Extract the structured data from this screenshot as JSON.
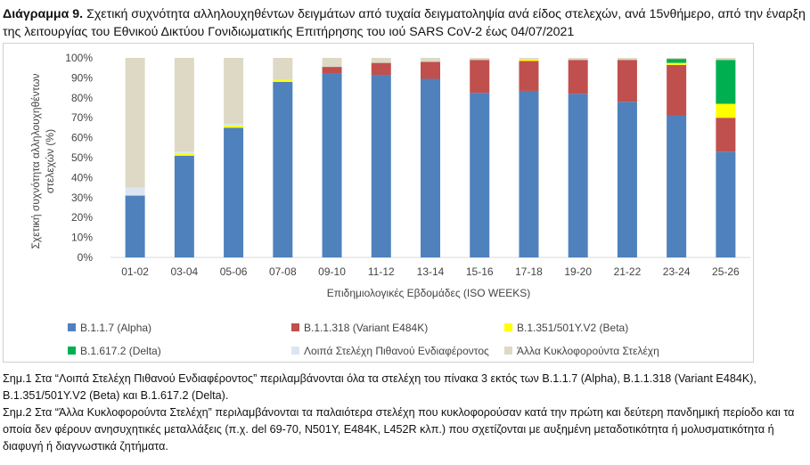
{
  "caption": {
    "label": "Διάγραμμα 9.",
    "text": "Σχετική συχνότητα αλληλουχηθέντων δειγμάτων από τυχαία δειγματοληψία ανά είδος στελεχών, ανά 15νθήμερο, από την έναρξη της λειτουργίας του Εθνικού Δικτύου Γονιδιωματικής Επιτήρησης του ιού SARS CoV-2 έως 04/07/2021"
  },
  "chart_data": {
    "type": "bar",
    "stacked": true,
    "xlabel": "Επιδημιολογικές Εβδομάδες (ISO WEEKS)",
    "ylabel": "Σχετική συχνότητα αλληλουχηθέντων στελεχών (%)",
    "ylim": [
      0,
      100
    ],
    "yticks": [
      "0%",
      "10%",
      "20%",
      "30%",
      "40%",
      "50%",
      "60%",
      "70%",
      "80%",
      "90%",
      "100%"
    ],
    "grid": false,
    "legend_position": "bottom",
    "categories": [
      "01-02",
      "03-04",
      "05-06",
      "07-08",
      "09-10",
      "11-12",
      "13-14",
      "15-16",
      "17-18",
      "19-20",
      "21-22",
      "23-24",
      "25-26"
    ],
    "series": [
      {
        "name": "B.1.1.7 (Alpha)",
        "color": "#4f81bd",
        "values": [
          31,
          51,
          65,
          88,
          92,
          91.5,
          89.5,
          82.5,
          83.5,
          82,
          78,
          71,
          53
        ]
      },
      {
        "name": "B.1.1.318 (Variant E484K)",
        "color": "#c0504d",
        "values": [
          0,
          0,
          0,
          0,
          3.5,
          6,
          8.5,
          16.5,
          15,
          17,
          21,
          25.5,
          17
        ]
      },
      {
        "name": "B.1.351/501Y.V2 (Beta)",
        "color": "#ffff00",
        "values": [
          0,
          1,
          1,
          1,
          0,
          0,
          0,
          0,
          0.7,
          0,
          0,
          1,
          7
        ]
      },
      {
        "name": "B.1.617.2 (Delta)",
        "color": "#00b050",
        "values": [
          0,
          0,
          0,
          0,
          0,
          0,
          0,
          0,
          0,
          0,
          0,
          2,
          22
        ]
      },
      {
        "name": "Λοιπά Στελέχη Πιθανού Ενδιαφέροντος",
        "color": "#dce6f2",
        "values": [
          4,
          1,
          1,
          0,
          0,
          0,
          0,
          0,
          0,
          0,
          0,
          0,
          0
        ]
      },
      {
        "name": "Άλλα Κυκλοφορούντα Στελέχη",
        "color": "#ddd9c4",
        "values": [
          65,
          47,
          33,
          11,
          4.5,
          2.5,
          2,
          1,
          0.8,
          1,
          1,
          0.5,
          1
        ]
      }
    ]
  },
  "notes": [
    "Σημ.1 Στα “Λοιπά Στελέχη Πιθανού Ενδιαφέροντος” περιλαμβάνονται όλα τα στελέχη του πίνακα 3 εκτός των B.1.1.7 (Alpha), B.1.1.318 (Variant E484K), B.1.351/501Y.V2 (Beta) και B.1.617.2 (Delta).",
    "Σημ.2 Στα “Άλλα Κυκλοφορούντα Στελέχη” περιλαμβάνονται τα παλαιότερα στελέχη που κυκλοφορούσαν κατά την πρώτη και δεύτερη πανδημική περίοδο και τα οποία δεν φέρουν ανησυχητικές μεταλλάξεις (π.χ. del 69-70, N501Y, E484K, L452R κλπ.) που σχετίζονται με αυξημένη μεταδοτικότητα ή μολυσματικότητα ή διαφυγή ή διαγνωστικά ζητήματα."
  ]
}
